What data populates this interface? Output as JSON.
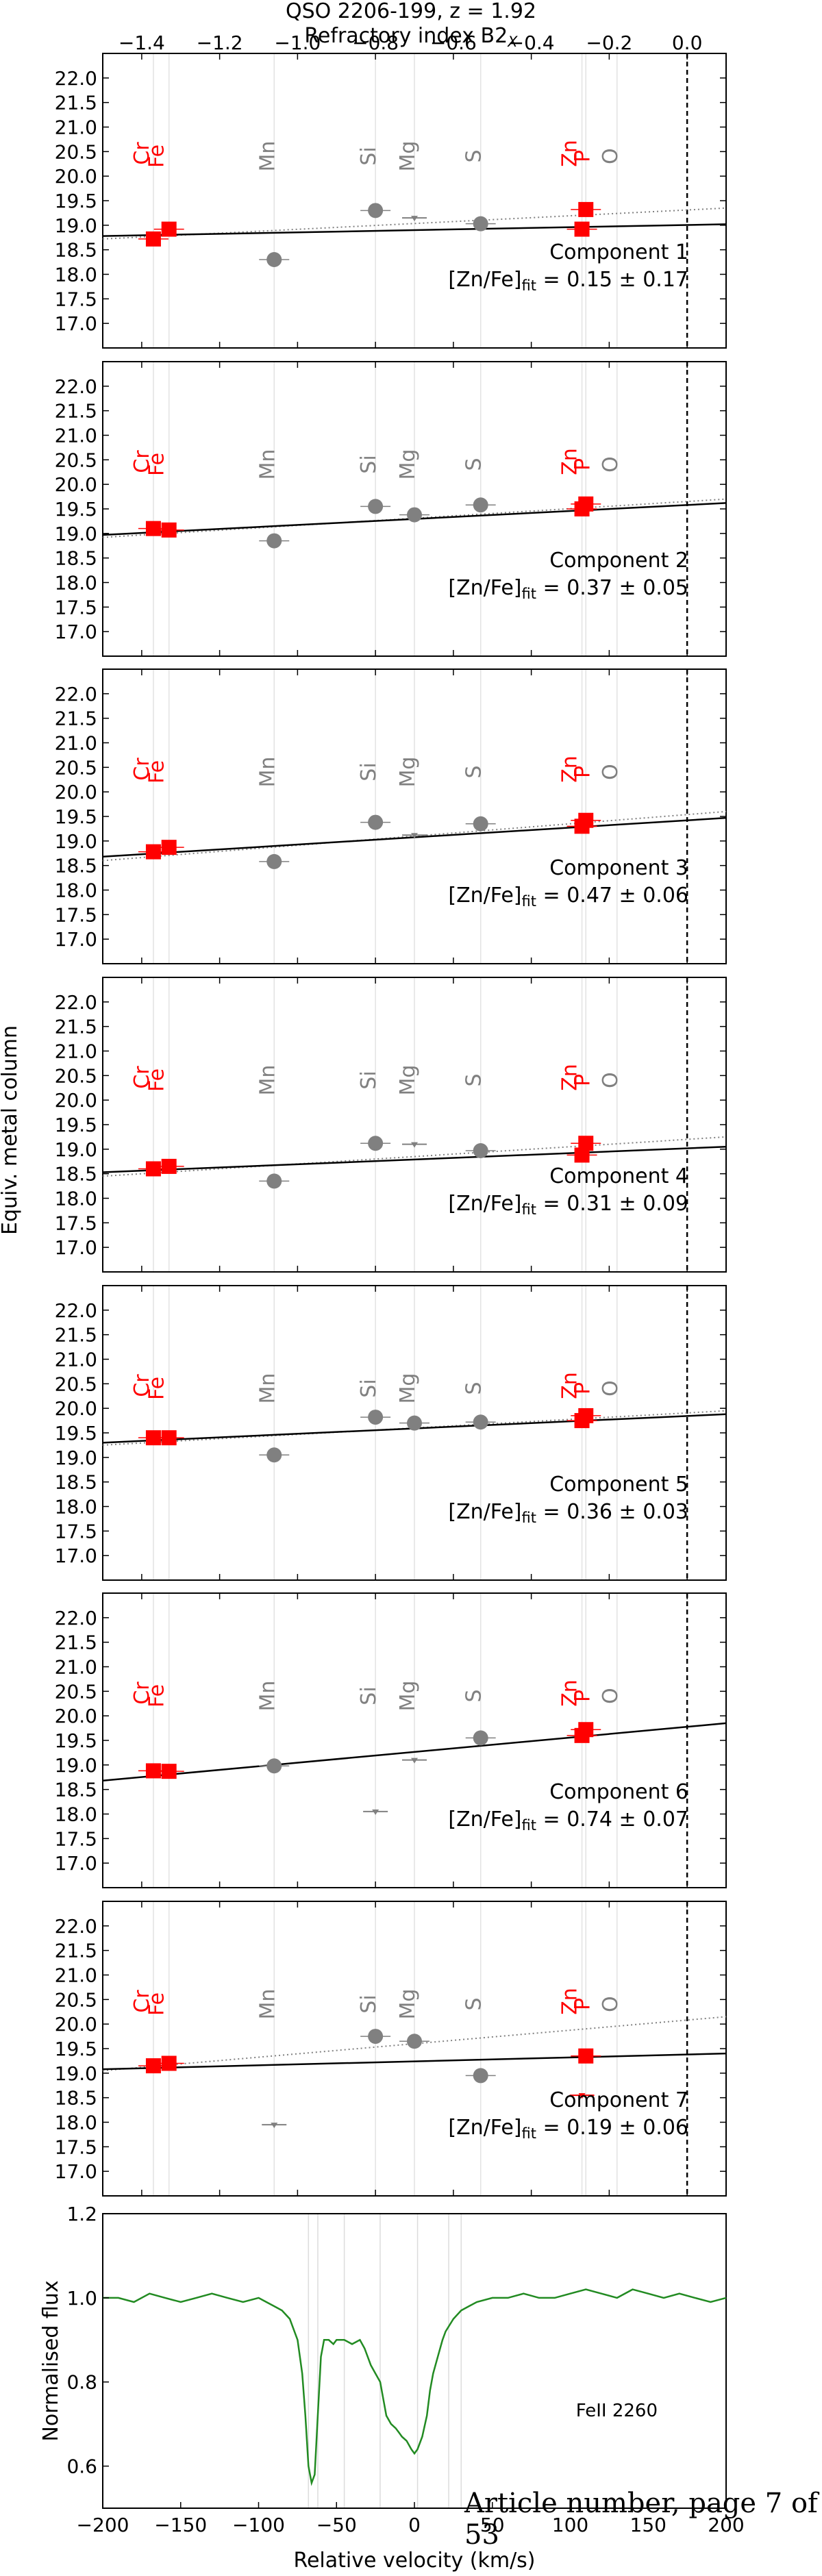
{
  "figure": {
    "title": "QSO 2206-199, z = 1.92",
    "top_axis_label": "Refractory index B2",
    "top_axis_label_sub": "X",
    "left_axis_label": "Equiv. metal column",
    "footer": "Article number, page 7 of 53"
  },
  "colors": {
    "refractory": "#ff0000",
    "volatile": "#808080",
    "fit_line": "#000000",
    "flux_line": "#228b22"
  },
  "chart_data": [
    {
      "type": "scatter",
      "panel": "Component 1",
      "annotation": "Component 1",
      "fit_text": "[Zn/Fe]",
      "fit_sub": "fit",
      "fit_value": " = 0.15 ± 0.17",
      "x_top_ticks": [
        "−1.4",
        "−1.2",
        "−1.0",
        "−0.8",
        "−0.6",
        "−0.4",
        "−0.2",
        "0.0"
      ],
      "xlim": [
        -1.5,
        0.1
      ],
      "ylim": [
        16.5,
        22.5
      ],
      "yticks": [
        "17.0",
        "17.5",
        "18.0",
        "18.5",
        "19.0",
        "19.5",
        "20.0",
        "20.5",
        "21.0",
        "21.5",
        "22.0"
      ],
      "elements": [
        {
          "name": "Cr",
          "x": -1.37,
          "y": 18.72,
          "group": "red",
          "limit": ""
        },
        {
          "name": "Fe",
          "x": -1.33,
          "y": 18.92,
          "group": "red",
          "limit": ""
        },
        {
          "name": "Mn",
          "x": -1.06,
          "y": 18.3,
          "group": "gray",
          "limit": ""
        },
        {
          "name": "Si",
          "x": -0.8,
          "y": 19.3,
          "group": "gray",
          "limit": ""
        },
        {
          "name": "Mg",
          "x": -0.7,
          "y": 19.15,
          "group": "gray",
          "limit": "lower"
        },
        {
          "name": "S",
          "x": -0.53,
          "y": 19.03,
          "group": "gray",
          "limit": ""
        },
        {
          "name": "Zn",
          "x": -0.27,
          "y": 18.92,
          "group": "red",
          "limit": ""
        },
        {
          "name": "P",
          "x": -0.26,
          "y": 19.32,
          "group": "red",
          "limit": ""
        },
        {
          "name": "O",
          "x": -0.18,
          "y": null,
          "group": "gray",
          "limit": ""
        }
      ],
      "fit": {
        "y_at_xmin": 18.78,
        "y_at_xmax": 19.02
      },
      "dotted": {
        "y_at_xmin": 18.72,
        "y_at_xmax": 19.35
      }
    },
    {
      "type": "scatter",
      "panel": "Component 2",
      "annotation": "Component 2",
      "fit_text": "[Zn/Fe]",
      "fit_sub": "fit",
      "fit_value": " = 0.37 ± 0.05",
      "xlim": [
        -1.5,
        0.1
      ],
      "ylim": [
        16.5,
        22.5
      ],
      "yticks": [
        "17.0",
        "17.5",
        "18.0",
        "18.5",
        "19.0",
        "19.5",
        "20.0",
        "20.5",
        "21.0",
        "21.5",
        "22.0"
      ],
      "elements": [
        {
          "name": "Cr",
          "x": -1.37,
          "y": 19.1,
          "group": "red",
          "limit": ""
        },
        {
          "name": "Fe",
          "x": -1.33,
          "y": 19.07,
          "group": "red",
          "limit": ""
        },
        {
          "name": "Mn",
          "x": -1.06,
          "y": 18.85,
          "group": "gray",
          "limit": ""
        },
        {
          "name": "Si",
          "x": -0.8,
          "y": 19.55,
          "group": "gray",
          "limit": ""
        },
        {
          "name": "Mg",
          "x": -0.7,
          "y": 19.38,
          "group": "gray",
          "limit": ""
        },
        {
          "name": "S",
          "x": -0.53,
          "y": 19.58,
          "group": "gray",
          "limit": ""
        },
        {
          "name": "Zn",
          "x": -0.27,
          "y": 19.5,
          "group": "red",
          "limit": ""
        },
        {
          "name": "P",
          "x": -0.26,
          "y": 19.6,
          "group": "red",
          "limit": ""
        },
        {
          "name": "O",
          "x": -0.18,
          "y": null,
          "group": "gray",
          "limit": ""
        }
      ],
      "fit": {
        "y_at_xmin": 18.97,
        "y_at_xmax": 19.62
      },
      "dotted": {
        "y_at_xmin": 18.92,
        "y_at_xmax": 19.7
      }
    },
    {
      "type": "scatter",
      "panel": "Component 3",
      "annotation": "Component 3",
      "fit_text": "[Zn/Fe]",
      "fit_sub": "fit",
      "fit_value": " = 0.47 ± 0.06",
      "xlim": [
        -1.5,
        0.1
      ],
      "ylim": [
        16.5,
        22.5
      ],
      "yticks": [
        "17.0",
        "17.5",
        "18.0",
        "18.5",
        "19.0",
        "19.5",
        "20.0",
        "20.5",
        "21.0",
        "21.5",
        "22.0"
      ],
      "elements": [
        {
          "name": "Cr",
          "x": -1.37,
          "y": 18.78,
          "group": "red",
          "limit": ""
        },
        {
          "name": "Fe",
          "x": -1.33,
          "y": 18.87,
          "group": "red",
          "limit": ""
        },
        {
          "name": "Mn",
          "x": -1.06,
          "y": 18.58,
          "group": "gray",
          "limit": ""
        },
        {
          "name": "Si",
          "x": -0.8,
          "y": 19.38,
          "group": "gray",
          "limit": ""
        },
        {
          "name": "Mg",
          "x": -0.7,
          "y": 19.12,
          "group": "gray",
          "limit": "lower"
        },
        {
          "name": "S",
          "x": -0.53,
          "y": 19.35,
          "group": "gray",
          "limit": ""
        },
        {
          "name": "Zn",
          "x": -0.27,
          "y": 19.3,
          "group": "red",
          "limit": ""
        },
        {
          "name": "P",
          "x": -0.26,
          "y": 19.42,
          "group": "red",
          "limit": ""
        },
        {
          "name": "O",
          "x": -0.18,
          "y": null,
          "group": "gray",
          "limit": ""
        }
      ],
      "fit": {
        "y_at_xmin": 18.68,
        "y_at_xmax": 19.47
      },
      "dotted": {
        "y_at_xmin": 18.6,
        "y_at_xmax": 19.6
      }
    },
    {
      "type": "scatter",
      "panel": "Component 4",
      "annotation": "Component 4",
      "fit_text": "[Zn/Fe]",
      "fit_sub": "fit",
      "fit_value": " = 0.31 ± 0.09",
      "xlim": [
        -1.5,
        0.1
      ],
      "ylim": [
        16.5,
        22.5
      ],
      "yticks": [
        "17.0",
        "17.5",
        "18.0",
        "18.5",
        "19.0",
        "19.5",
        "20.0",
        "20.5",
        "21.0",
        "21.5",
        "22.0"
      ],
      "elements": [
        {
          "name": "Cr",
          "x": -1.37,
          "y": 18.6,
          "group": "red",
          "limit": ""
        },
        {
          "name": "Fe",
          "x": -1.33,
          "y": 18.65,
          "group": "red",
          "limit": ""
        },
        {
          "name": "Mn",
          "x": -1.06,
          "y": 18.35,
          "group": "gray",
          "limit": ""
        },
        {
          "name": "Si",
          "x": -0.8,
          "y": 19.12,
          "group": "gray",
          "limit": ""
        },
        {
          "name": "Mg",
          "x": -0.7,
          "y": 19.1,
          "group": "gray",
          "limit": "lower"
        },
        {
          "name": "S",
          "x": -0.53,
          "y": 18.97,
          "group": "gray",
          "limit": ""
        },
        {
          "name": "Zn",
          "x": -0.27,
          "y": 18.88,
          "group": "red",
          "limit": ""
        },
        {
          "name": "P",
          "x": -0.26,
          "y": 19.12,
          "group": "red",
          "limit": ""
        },
        {
          "name": "O",
          "x": -0.18,
          "y": null,
          "group": "gray",
          "limit": ""
        }
      ],
      "fit": {
        "y_at_xmin": 18.53,
        "y_at_xmax": 19.05
      },
      "dotted": {
        "y_at_xmin": 18.45,
        "y_at_xmax": 19.25
      }
    },
    {
      "type": "scatter",
      "panel": "Component 5",
      "annotation": "Component 5",
      "fit_text": "[Zn/Fe]",
      "fit_sub": "fit",
      "fit_value": " = 0.36 ± 0.03",
      "xlim": [
        -1.5,
        0.1
      ],
      "ylim": [
        16.5,
        22.5
      ],
      "yticks": [
        "17.0",
        "17.5",
        "18.0",
        "18.5",
        "19.0",
        "19.5",
        "20.0",
        "20.5",
        "21.0",
        "21.5",
        "22.0"
      ],
      "elements": [
        {
          "name": "Cr",
          "x": -1.37,
          "y": 19.4,
          "group": "red",
          "limit": ""
        },
        {
          "name": "Fe",
          "x": -1.33,
          "y": 19.4,
          "group": "red",
          "limit": ""
        },
        {
          "name": "Mn",
          "x": -1.06,
          "y": 19.05,
          "group": "gray",
          "limit": ""
        },
        {
          "name": "Si",
          "x": -0.8,
          "y": 19.82,
          "group": "gray",
          "limit": ""
        },
        {
          "name": "Mg",
          "x": -0.7,
          "y": 19.7,
          "group": "gray",
          "limit": ""
        },
        {
          "name": "S",
          "x": -0.53,
          "y": 19.72,
          "group": "gray",
          "limit": ""
        },
        {
          "name": "Zn",
          "x": -0.27,
          "y": 19.75,
          "group": "red",
          "limit": ""
        },
        {
          "name": "P",
          "x": -0.26,
          "y": 19.85,
          "group": "red",
          "limit": ""
        },
        {
          "name": "O",
          "x": -0.18,
          "y": null,
          "group": "gray",
          "limit": ""
        }
      ],
      "fit": {
        "y_at_xmin": 19.3,
        "y_at_xmax": 19.88
      },
      "dotted": {
        "y_at_xmin": 19.25,
        "y_at_xmax": 19.95
      }
    },
    {
      "type": "scatter",
      "panel": "Component 6",
      "annotation": "Component 6",
      "fit_text": "[Zn/Fe]",
      "fit_sub": "fit",
      "fit_value": " = 0.74 ± 0.07",
      "xlim": [
        -1.5,
        0.1
      ],
      "ylim": [
        16.5,
        22.5
      ],
      "yticks": [
        "17.0",
        "17.5",
        "18.0",
        "18.5",
        "19.0",
        "19.5",
        "20.0",
        "20.5",
        "21.0",
        "21.5",
        "22.0"
      ],
      "elements": [
        {
          "name": "Cr",
          "x": -1.37,
          "y": 18.88,
          "group": "red",
          "limit": ""
        },
        {
          "name": "Fe",
          "x": -1.33,
          "y": 18.87,
          "group": "red",
          "limit": ""
        },
        {
          "name": "Mn",
          "x": -1.06,
          "y": 18.98,
          "group": "gray",
          "limit": ""
        },
        {
          "name": "Si",
          "x": -0.8,
          "y": 18.05,
          "group": "gray",
          "limit": "lower"
        },
        {
          "name": "Mg",
          "x": -0.7,
          "y": 19.1,
          "group": "gray",
          "limit": "lower"
        },
        {
          "name": "S",
          "x": -0.53,
          "y": 19.55,
          "group": "gray",
          "limit": ""
        },
        {
          "name": "Zn",
          "x": -0.27,
          "y": 19.6,
          "group": "red",
          "limit": ""
        },
        {
          "name": "P",
          "x": -0.26,
          "y": 19.72,
          "group": "red",
          "limit": ""
        },
        {
          "name": "O",
          "x": -0.18,
          "y": null,
          "group": "gray",
          "limit": ""
        }
      ],
      "fit": {
        "y_at_xmin": 18.68,
        "y_at_xmax": 19.85
      },
      "dotted": null
    },
    {
      "type": "scatter",
      "panel": "Component 7",
      "annotation": "Component 7",
      "fit_text": "[Zn/Fe]",
      "fit_sub": "fit",
      "fit_value": " = 0.19 ± 0.06",
      "xlim": [
        -1.5,
        0.1
      ],
      "ylim": [
        16.5,
        22.5
      ],
      "yticks": [
        "17.0",
        "17.5",
        "18.0",
        "18.5",
        "19.0",
        "19.5",
        "20.0",
        "20.5",
        "21.0",
        "21.5",
        "22.0"
      ],
      "elements": [
        {
          "name": "Cr",
          "x": -1.37,
          "y": 19.15,
          "group": "red",
          "limit": ""
        },
        {
          "name": "Fe",
          "x": -1.33,
          "y": 19.2,
          "group": "red",
          "limit": ""
        },
        {
          "name": "Mn",
          "x": -1.06,
          "y": 17.95,
          "group": "gray",
          "limit": "lower"
        },
        {
          "name": "Si",
          "x": -0.8,
          "y": 19.75,
          "group": "gray",
          "limit": ""
        },
        {
          "name": "Mg",
          "x": -0.7,
          "y": 19.65,
          "group": "gray",
          "limit": ""
        },
        {
          "name": "S",
          "x": -0.53,
          "y": 18.95,
          "group": "gray",
          "limit": ""
        },
        {
          "name": "Zn",
          "x": -0.27,
          "y": 18.55,
          "group": "red",
          "limit": "lower"
        },
        {
          "name": "P",
          "x": -0.26,
          "y": 19.35,
          "group": "red",
          "limit": ""
        },
        {
          "name": "O",
          "x": -0.18,
          "y": null,
          "group": "gray",
          "limit": ""
        }
      ],
      "fit": {
        "y_at_xmin": 19.08,
        "y_at_xmax": 19.4
      },
      "dotted": {
        "y_at_xmin": 19.05,
        "y_at_xmax": 20.15
      }
    },
    {
      "type": "line",
      "panel": "FeII 2260",
      "annotation": "FeII 2260",
      "xlabel": "Relative velocity (km/s)",
      "ylabel": "Normalised flux",
      "xlim": [
        -200,
        200
      ],
      "ylim": [
        0.5,
        1.2
      ],
      "xticks": [
        "−200",
        "−150",
        "−100",
        "−50",
        "0",
        "50",
        "100",
        "150",
        "200"
      ],
      "yticks": [
        "0.6",
        "0.8",
        "1.0",
        "1.2"
      ],
      "component_markers": [
        -68,
        -62,
        -45,
        -22,
        2,
        22,
        30
      ],
      "x": [
        -200,
        -190,
        -180,
        -170,
        -160,
        -150,
        -140,
        -130,
        -120,
        -110,
        -100,
        -90,
        -85,
        -80,
        -75,
        -72,
        -70,
        -68,
        -66,
        -64,
        -62,
        -60,
        -58,
        -55,
        -52,
        -50,
        -45,
        -40,
        -35,
        -32,
        -30,
        -28,
        -25,
        -22,
        -20,
        -18,
        -15,
        -12,
        -10,
        -8,
        -5,
        -2,
        0,
        2,
        5,
        8,
        10,
        12,
        15,
        18,
        20,
        25,
        30,
        35,
        40,
        50,
        60,
        70,
        80,
        90,
        100,
        110,
        120,
        130,
        140,
        150,
        160,
        170,
        180,
        190,
        200
      ],
      "y": [
        1.0,
        1.0,
        0.99,
        1.01,
        1.0,
        0.99,
        1.0,
        1.01,
        1.0,
        0.99,
        1.0,
        0.98,
        0.97,
        0.95,
        0.9,
        0.82,
        0.72,
        0.6,
        0.56,
        0.58,
        0.72,
        0.86,
        0.9,
        0.9,
        0.89,
        0.9,
        0.9,
        0.89,
        0.9,
        0.88,
        0.86,
        0.84,
        0.82,
        0.8,
        0.76,
        0.72,
        0.7,
        0.69,
        0.68,
        0.67,
        0.66,
        0.64,
        0.63,
        0.64,
        0.67,
        0.72,
        0.78,
        0.82,
        0.86,
        0.9,
        0.92,
        0.95,
        0.97,
        0.98,
        0.99,
        1.0,
        1.0,
        1.01,
        1.0,
        1.0,
        1.01,
        1.02,
        1.01,
        1.0,
        1.02,
        1.01,
        1.0,
        1.01,
        1.0,
        0.99,
        1.0
      ]
    }
  ]
}
